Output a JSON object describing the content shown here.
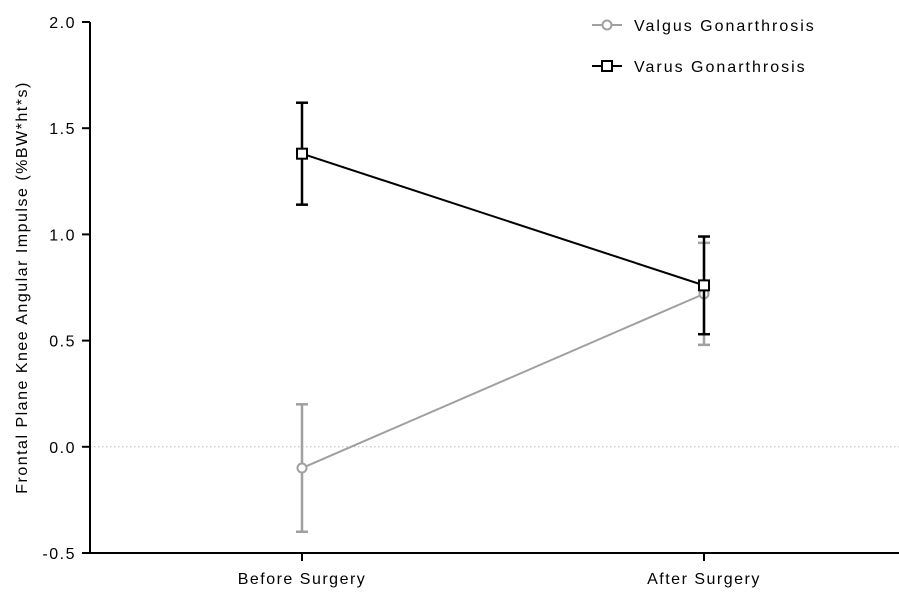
{
  "chart_data": {
    "type": "line",
    "title": "",
    "xlabel": "",
    "ylabel": "Frontal Plane Knee Angular Impulse (%BW*ht*s)",
    "categories": [
      "Before Surgery",
      "After Surgery"
    ],
    "ylim": [
      -0.5,
      2.0
    ],
    "yticks": [
      -0.5,
      0.0,
      0.5,
      1.0,
      1.5,
      2.0
    ],
    "ytick_labels": [
      "-0.5",
      "0.0",
      "0.5",
      "1.0",
      "1.5",
      "2.0"
    ],
    "zero_reference_line": "dotted",
    "grid": false,
    "legend_position": "top-right",
    "series": [
      {
        "name": "Valgus Gonarthrosis",
        "marker": "circle",
        "color": "#a0a0a0",
        "values": [
          -0.1,
          0.72
        ],
        "error": [
          0.3,
          0.24
        ]
      },
      {
        "name": "Varus Gonarthrosis",
        "marker": "square",
        "color": "#000000",
        "values": [
          1.38,
          0.76
        ],
        "error": [
          0.24,
          0.23
        ]
      }
    ]
  }
}
